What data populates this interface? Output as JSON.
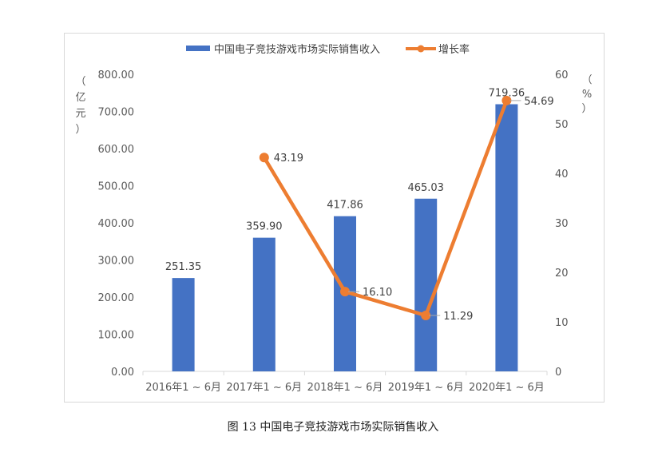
{
  "chart_data": {
    "type": "bar+line",
    "categories": [
      "2016年1 ~ 6月",
      "2017年1 ~ 6月",
      "2018年1 ~ 6月",
      "2019年1 ~ 6月",
      "2020年1 ~ 6月"
    ],
    "series": [
      {
        "name": "中国电子竞技游戏市场实际销售收入",
        "type": "bar",
        "axis": "left",
        "color": "#4472C4",
        "values": [
          251.35,
          359.9,
          417.86,
          465.03,
          719.36
        ],
        "labels": [
          "251.35",
          "359.90",
          "417.86",
          "465.03",
          "719.36"
        ]
      },
      {
        "name": "增长率",
        "type": "line",
        "axis": "right",
        "color": "#ED7D31",
        "values": [
          null,
          43.19,
          16.1,
          11.29,
          54.69
        ],
        "labels": [
          "",
          "43.19",
          "16.10",
          "11.29",
          "54.69"
        ]
      }
    ],
    "left_axis": {
      "label": [
        "（",
        "亿",
        "元",
        "）"
      ],
      "ylim": [
        0,
        800
      ],
      "ticks": [
        "0.00",
        "100.00",
        "200.00",
        "300.00",
        "400.00",
        "500.00",
        "600.00",
        "700.00",
        "800.00"
      ]
    },
    "right_axis": {
      "label": [
        "（",
        "%",
        "）"
      ],
      "ylim": [
        0,
        60
      ],
      "ticks": [
        "0",
        "10",
        "20",
        "30",
        "40",
        "50",
        "60"
      ]
    },
    "legend": "top-center",
    "grid": false
  },
  "caption": "图 13 中国电子竞技游戏市场实际销售收入"
}
